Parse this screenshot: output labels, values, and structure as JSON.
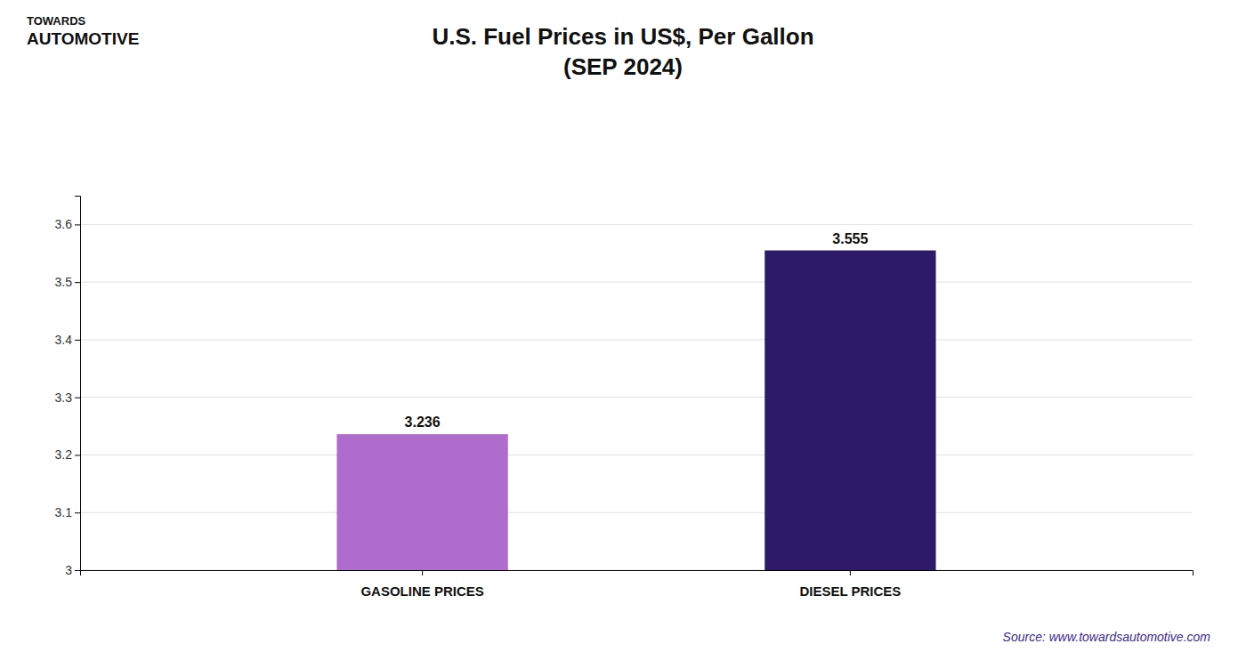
{
  "chart_data": {
    "type": "bar",
    "title": "U.S. Fuel Prices in US$, Per Gallon\n(SEP 2024)",
    "categories": [
      "GASOLINE PRICES",
      "DIESEL PRICES"
    ],
    "values": [
      3.236,
      3.555
    ],
    "colors": [
      "#b06ccc",
      "#2d1b69"
    ],
    "ylim": [
      3.0,
      3.65
    ],
    "yticks": [
      3,
      3.1,
      3.2,
      3.3,
      3.4,
      3.5,
      3.6
    ],
    "grid": true,
    "data_labels": true,
    "annotations": [
      "TOWARDS",
      "AUTOMOTIVE",
      "Source: www.towardsautomotive.com"
    ]
  }
}
